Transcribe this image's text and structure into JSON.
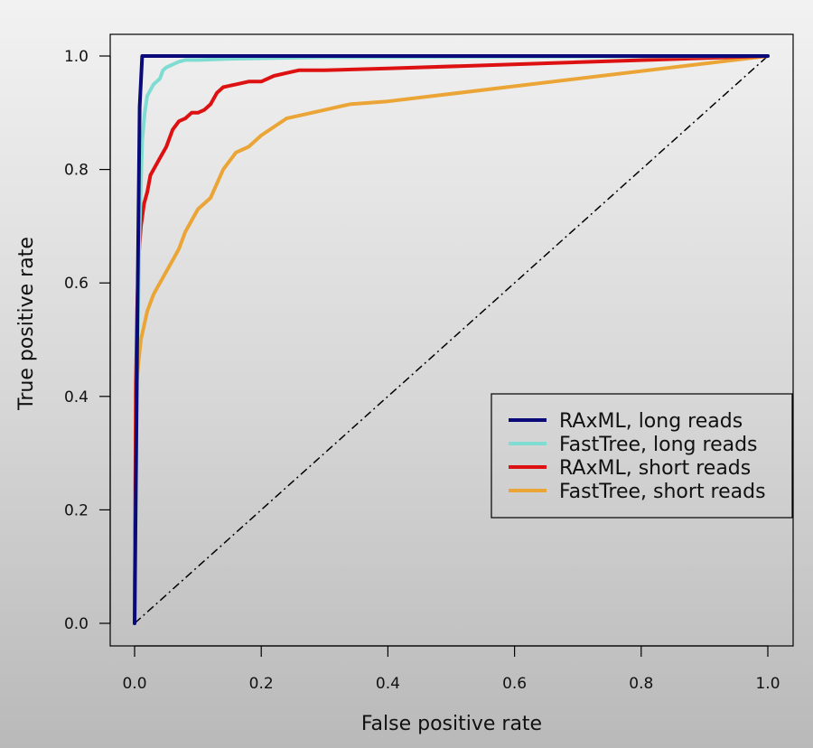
{
  "chart_data": {
    "type": "line",
    "title": "",
    "xlabel": "False positive rate",
    "ylabel": "True positive rate",
    "xlim": [
      0,
      1
    ],
    "ylim": [
      0,
      1
    ],
    "xticks": [
      "0.0",
      "0.2",
      "0.4",
      "0.6",
      "0.8",
      "1.0"
    ],
    "yticks": [
      "0.0",
      "0.2",
      "0.4",
      "0.6",
      "0.8",
      "1.0"
    ],
    "grid": false,
    "legend_position": "bottom-right",
    "reference_line": {
      "name": "random",
      "style": "dash-dot",
      "color": "#000000",
      "x": [
        0,
        1
      ],
      "y": [
        0,
        1
      ]
    },
    "series": [
      {
        "name": "RAxML, long reads",
        "color": "#0a0a7a",
        "x": [
          0,
          0.005,
          0.008,
          0.012,
          0.31,
          1.0
        ],
        "y": [
          0,
          0.6,
          0.91,
          1.0,
          1.0,
          1.0
        ]
      },
      {
        "name": "FastTree, long reads",
        "color": "#7fdcd2",
        "x": [
          0,
          0.004,
          0.008,
          0.012,
          0.016,
          0.02,
          0.025,
          0.03,
          0.035,
          0.04,
          0.045,
          0.05,
          0.06,
          0.07,
          0.08,
          0.1,
          0.15,
          0.3,
          1.0
        ],
        "y": [
          0,
          0.45,
          0.7,
          0.85,
          0.9,
          0.93,
          0.94,
          0.95,
          0.955,
          0.96,
          0.975,
          0.98,
          0.985,
          0.99,
          0.993,
          0.993,
          0.995,
          0.998,
          1.0
        ]
      },
      {
        "name": "RAxML, short reads",
        "color": "#dd1111",
        "x": [
          0,
          0.002,
          0.004,
          0.006,
          0.01,
          0.015,
          0.02,
          0.025,
          0.03,
          0.035,
          0.04,
          0.05,
          0.06,
          0.07,
          0.08,
          0.09,
          0.1,
          0.11,
          0.12,
          0.13,
          0.14,
          0.16,
          0.18,
          0.2,
          0.22,
          0.24,
          0.26,
          0.3,
          0.4,
          1.0
        ],
        "y": [
          0,
          0.42,
          0.55,
          0.64,
          0.7,
          0.74,
          0.76,
          0.79,
          0.8,
          0.81,
          0.82,
          0.84,
          0.87,
          0.885,
          0.89,
          0.9,
          0.9,
          0.905,
          0.915,
          0.935,
          0.945,
          0.95,
          0.955,
          0.955,
          0.965,
          0.97,
          0.975,
          0.975,
          0.978,
          1.0
        ]
      },
      {
        "name": "FastTree, short reads",
        "color": "#eba536",
        "x": [
          0,
          0.003,
          0.006,
          0.01,
          0.02,
          0.03,
          0.04,
          0.05,
          0.06,
          0.07,
          0.08,
          0.09,
          0.1,
          0.12,
          0.14,
          0.16,
          0.18,
          0.2,
          0.22,
          0.24,
          0.26,
          0.3,
          0.34,
          0.4,
          1.0
        ],
        "y": [
          0,
          0.42,
          0.46,
          0.5,
          0.55,
          0.58,
          0.6,
          0.62,
          0.64,
          0.66,
          0.69,
          0.71,
          0.73,
          0.75,
          0.8,
          0.83,
          0.84,
          0.86,
          0.875,
          0.89,
          0.895,
          0.905,
          0.915,
          0.92,
          1.0
        ]
      }
    ]
  }
}
